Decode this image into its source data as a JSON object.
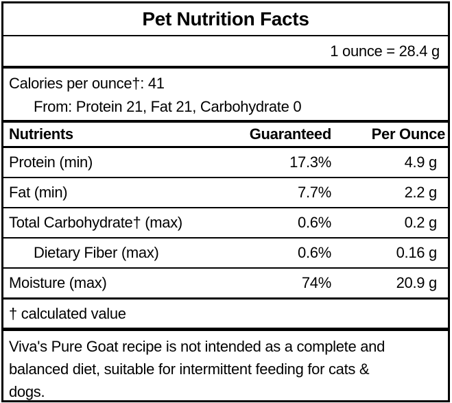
{
  "label": {
    "title": "Pet Nutrition Facts",
    "serving_info": "1 ounce = 28.4 g",
    "calories_line": "Calories per ounce†: 41",
    "calories_from": "From: Protein 21, Fat 21, Carbohydrate 0",
    "columns": {
      "nutrient": "Nutrients",
      "guaranteed": "Guaranteed",
      "per_ounce": "Per Ounce"
    },
    "rows": [
      {
        "name": "Protein (min)",
        "guaranteed": "17.3%",
        "per_ounce": "4.9 g"
      },
      {
        "name": "Fat (min)",
        "guaranteed": "7.7%",
        "per_ounce": "2.2 g"
      },
      {
        "name": "Total Carbohydrate† (max)",
        "guaranteed": "0.6%",
        "per_ounce": "0.2 g"
      },
      {
        "name": "Dietary Fiber (max)",
        "guaranteed": "0.6%",
        "per_ounce": "0.16 g"
      },
      {
        "name": "Moisture (max)",
        "guaranteed": "74%",
        "per_ounce": "20.9 g"
      }
    ],
    "footnote": "† calculated value",
    "disclaimer_lines": [
      "Viva's Pure Goat recipe is not intended as a complete and",
      "balanced diet, suitable for intermittent feeding for cats &",
      "dogs."
    ]
  },
  "colors": {
    "border": "#000000",
    "background": "#ffffff",
    "text": "#000000"
  }
}
